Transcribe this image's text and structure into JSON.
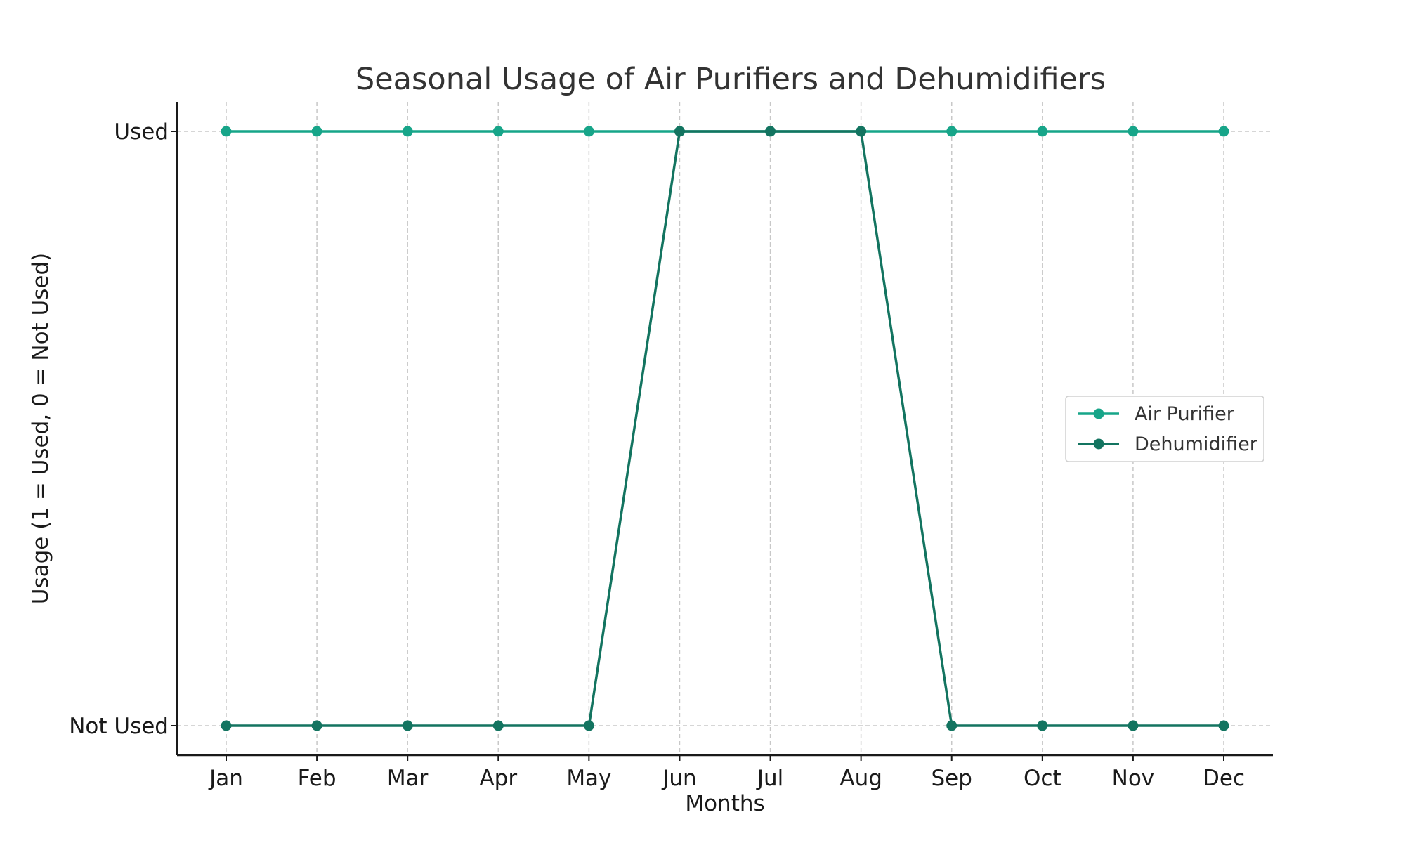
{
  "chart_data": {
    "type": "line",
    "title": "Seasonal Usage of Air Purifiers and Dehumidifiers",
    "xlabel": "Months",
    "ylabel": "Usage (1 = Used, 0 = Not Used)",
    "categories": [
      "Jan",
      "Feb",
      "Mar",
      "Apr",
      "May",
      "Jun",
      "Jul",
      "Aug",
      "Sep",
      "Oct",
      "Nov",
      "Dec"
    ],
    "yticks": [
      {
        "value": 0,
        "label": "Not Used"
      },
      {
        "value": 1,
        "label": "Used"
      }
    ],
    "ylim": [
      -0.05,
      1.05
    ],
    "grid": true,
    "legend_position": "center-right",
    "series": [
      {
        "name": "Air Purifier",
        "color": "#17a589",
        "values": [
          1,
          1,
          1,
          1,
          1,
          1,
          1,
          1,
          1,
          1,
          1,
          1
        ]
      },
      {
        "name": "Dehumidifier",
        "color": "#137460",
        "values": [
          0,
          0,
          0,
          0,
          0,
          1,
          1,
          1,
          0,
          0,
          0,
          0
        ]
      }
    ]
  }
}
